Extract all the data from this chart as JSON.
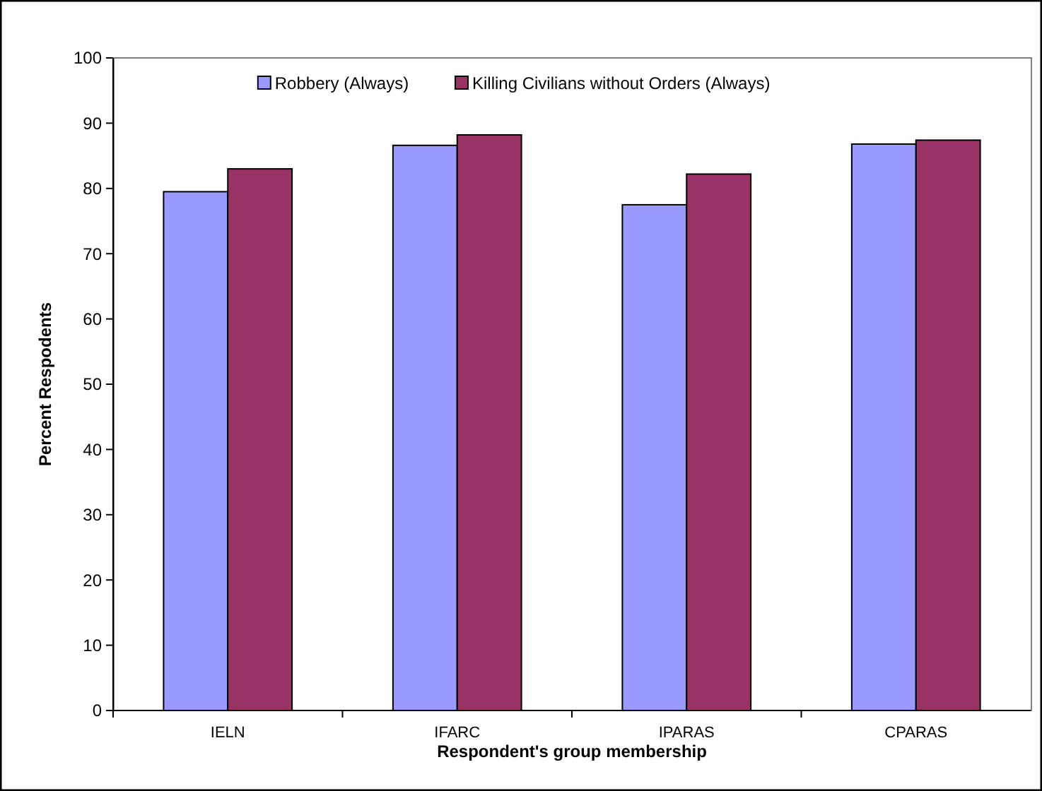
{
  "chart_data": {
    "type": "bar",
    "xlabel": "Respondent's group membership",
    "ylabel": "Percent Respodents",
    "categories": [
      "IELN",
      "IFARC",
      "IPARAS",
      "CPARAS"
    ],
    "series": [
      {
        "name": "Robbery (Always)",
        "color": "#9999ff",
        "values": [
          79.5,
          86.6,
          77.5,
          86.8
        ]
      },
      {
        "name": "Killing Civilians without Orders (Always)",
        "color": "#993366",
        "values": [
          83,
          88.2,
          82.2,
          87.4
        ]
      }
    ],
    "ylim": [
      0,
      100
    ],
    "yticks": [
      0,
      10,
      20,
      30,
      40,
      50,
      60,
      70,
      80,
      90,
      100
    ],
    "grid": false,
    "legend": "top"
  }
}
